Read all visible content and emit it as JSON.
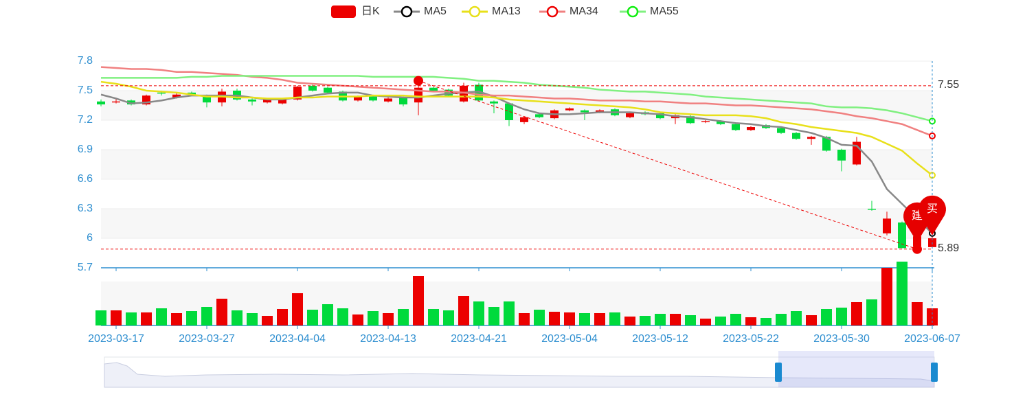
{
  "chart_data": {
    "type": "candlestick",
    "categories": [
      null,
      "2023-03-17",
      null,
      null,
      null,
      null,
      null,
      "2023-03-27",
      null,
      null,
      null,
      null,
      null,
      "2023-04-04",
      null,
      null,
      null,
      null,
      null,
      "2023-04-13",
      null,
      null,
      null,
      null,
      null,
      "2023-04-21",
      null,
      null,
      null,
      null,
      null,
      "2023-05-04",
      null,
      null,
      null,
      null,
      null,
      "2023-05-12",
      null,
      null,
      null,
      null,
      null,
      "2023-05-22",
      null,
      null,
      null,
      null,
      null,
      "2023-05-30",
      null,
      null,
      null,
      null,
      null,
      "2023-06-07"
    ],
    "candles": {
      "name": "日K",
      "color_up": "#ec0000",
      "color_down": "#00da3c",
      "open": [
        7.39,
        7.38,
        7.4,
        7.36,
        7.48,
        7.43,
        7.48,
        7.45,
        7.38,
        7.5,
        7.41,
        7.38,
        7.37,
        7.41,
        7.55,
        7.53,
        7.49,
        7.4,
        7.44,
        7.39,
        7.43,
        7.38,
        7.53,
        7.51,
        7.39,
        7.56,
        7.39,
        7.37,
        7.18,
        7.26,
        7.22,
        7.3,
        7.3,
        7.28,
        7.31,
        7.23,
        7.28,
        7.27,
        7.22,
        7.24,
        7.18,
        7.19,
        7.16,
        7.1,
        7.15,
        7.12,
        7.07,
        7.01,
        7.03,
        6.9,
        6.75,
        6.3,
        6.05,
        6.16,
        5.92,
        5.91
      ],
      "close": [
        7.36,
        7.39,
        7.36,
        7.45,
        7.47,
        7.46,
        7.46,
        7.38,
        7.49,
        7.41,
        7.39,
        7.41,
        7.41,
        7.54,
        7.5,
        7.48,
        7.4,
        7.44,
        7.4,
        7.42,
        7.36,
        7.53,
        7.5,
        7.45,
        7.55,
        7.4,
        7.37,
        7.2,
        7.23,
        7.23,
        7.3,
        7.32,
        7.28,
        7.3,
        7.25,
        7.27,
        7.26,
        7.22,
        7.25,
        7.17,
        7.19,
        7.16,
        7.1,
        7.13,
        7.12,
        7.07,
        7.01,
        7.03,
        6.89,
        6.79,
        6.98,
        6.29,
        6.2,
        5.9,
        6.02,
        6.0
      ],
      "high": [
        7.41,
        7.42,
        7.41,
        7.46,
        7.5,
        7.48,
        7.49,
        7.46,
        7.52,
        7.52,
        7.42,
        7.42,
        7.42,
        7.55,
        7.56,
        7.54,
        7.5,
        7.45,
        7.45,
        7.43,
        7.44,
        7.6,
        7.54,
        7.52,
        7.58,
        7.58,
        7.4,
        7.38,
        7.24,
        7.27,
        7.31,
        7.33,
        7.31,
        7.31,
        7.32,
        7.28,
        7.29,
        7.28,
        7.26,
        7.25,
        7.2,
        7.2,
        7.17,
        7.14,
        7.16,
        7.13,
        7.08,
        7.04,
        7.04,
        6.91,
        7.03,
        6.38,
        6.27,
        6.17,
        6.05,
        6.03
      ],
      "low": [
        7.34,
        7.37,
        7.35,
        7.35,
        7.45,
        7.42,
        7.45,
        7.33,
        7.34,
        7.4,
        7.35,
        7.37,
        7.36,
        7.4,
        7.49,
        7.47,
        7.39,
        7.39,
        7.39,
        7.38,
        7.34,
        7.25,
        7.49,
        7.44,
        7.38,
        7.39,
        7.27,
        7.14,
        7.16,
        7.22,
        7.21,
        7.29,
        7.2,
        7.27,
        7.24,
        7.22,
        7.25,
        7.21,
        7.16,
        7.16,
        7.17,
        7.15,
        7.09,
        7.09,
        7.11,
        7.06,
        7.0,
        6.95,
        6.88,
        6.68,
        6.74,
        6.28,
        6.03,
        5.9,
        5.89,
        5.91
      ]
    },
    "ma": [
      {
        "name": "MA5",
        "color": "#888888",
        "symbol_color": "#000000",
        "values": [
          7.46,
          7.42,
          7.37,
          7.38,
          7.4,
          7.43,
          7.45,
          7.45,
          7.45,
          7.45,
          7.43,
          7.41,
          7.41,
          7.43,
          7.45,
          7.47,
          7.48,
          7.48,
          7.45,
          7.44,
          7.43,
          7.43,
          7.45,
          7.47,
          7.48,
          7.49,
          7.44,
          7.37,
          7.31,
          7.27,
          7.26,
          7.26,
          7.27,
          7.28,
          7.28,
          7.28,
          7.27,
          7.26,
          7.24,
          7.23,
          7.21,
          7.19,
          7.17,
          7.16,
          7.14,
          7.13,
          7.1,
          7.07,
          7.02,
          6.95,
          6.94,
          6.78,
          6.5,
          6.35,
          6.2,
          6.05
        ]
      },
      {
        "name": "MA13",
        "color": "#e8e01a",
        "symbol_color": "#e8e01a",
        "values": [
          7.59,
          7.57,
          7.54,
          7.5,
          7.49,
          7.48,
          7.46,
          7.44,
          7.44,
          7.43,
          7.43,
          7.42,
          7.42,
          7.43,
          7.43,
          7.44,
          7.44,
          7.44,
          7.45,
          7.45,
          7.45,
          7.44,
          7.44,
          7.44,
          7.44,
          7.44,
          7.43,
          7.41,
          7.4,
          7.39,
          7.38,
          7.37,
          7.36,
          7.35,
          7.34,
          7.33,
          7.31,
          7.28,
          7.27,
          7.26,
          7.25,
          7.25,
          7.25,
          7.24,
          7.22,
          7.18,
          7.16,
          7.13,
          7.11,
          7.09,
          7.07,
          7.03,
          6.96,
          6.89,
          6.76,
          6.64
        ]
      },
      {
        "name": "MA34",
        "color": "#f08080",
        "symbol_color": "#ee0000",
        "values": [
          7.74,
          7.73,
          7.72,
          7.72,
          7.71,
          7.69,
          7.69,
          7.68,
          7.67,
          7.66,
          7.64,
          7.63,
          7.61,
          7.58,
          7.57,
          7.56,
          7.55,
          7.54,
          7.53,
          7.52,
          7.51,
          7.5,
          7.49,
          7.49,
          7.48,
          7.46,
          7.45,
          7.45,
          7.44,
          7.43,
          7.42,
          7.42,
          7.41,
          7.4,
          7.4,
          7.4,
          7.39,
          7.39,
          7.38,
          7.37,
          7.37,
          7.36,
          7.35,
          7.35,
          7.34,
          7.33,
          7.32,
          7.31,
          7.29,
          7.27,
          7.24,
          7.22,
          7.19,
          7.16,
          7.1,
          7.04
        ]
      },
      {
        "name": "MA55",
        "color": "#80f080",
        "symbol_color": "#11ee11",
        "values": [
          7.63,
          7.63,
          7.63,
          7.63,
          7.63,
          7.63,
          7.64,
          7.64,
          7.65,
          7.65,
          7.65,
          7.65,
          7.65,
          7.65,
          7.65,
          7.65,
          7.65,
          7.65,
          7.64,
          7.64,
          7.64,
          7.64,
          7.64,
          7.63,
          7.62,
          7.6,
          7.6,
          7.59,
          7.58,
          7.56,
          7.55,
          7.54,
          7.53,
          7.51,
          7.5,
          7.49,
          7.49,
          7.48,
          7.47,
          7.46,
          7.44,
          7.43,
          7.42,
          7.41,
          7.4,
          7.39,
          7.38,
          7.37,
          7.34,
          7.33,
          7.33,
          7.32,
          7.3,
          7.27,
          7.23,
          7.19
        ]
      }
    ],
    "volume": {
      "values": [
        22,
        22,
        19,
        19,
        25,
        18,
        21,
        27,
        39,
        22,
        18,
        14,
        24,
        47,
        23,
        31,
        25,
        16,
        21,
        18,
        24,
        72,
        24,
        22,
        43,
        35,
        27,
        35,
        18,
        23,
        20,
        19,
        18,
        18,
        19,
        13,
        14,
        17,
        17,
        15,
        10,
        13,
        17,
        12,
        11,
        17,
        21,
        15,
        24,
        26,
        34,
        38,
        84,
        93,
        34,
        25
      ]
    },
    "mark_lines": [
      7.55,
      5.89
    ],
    "markers": [
      {
        "label": "建",
        "index": 54,
        "value": 5.96
      },
      {
        "label": "买",
        "index": 55,
        "value": 6.03
      }
    ],
    "ylim": [
      5.7,
      7.8
    ],
    "yticks": [
      5.7,
      6,
      6.3,
      6.6,
      6.9,
      7.2,
      7.5,
      7.8
    ],
    "grid": true
  }
}
